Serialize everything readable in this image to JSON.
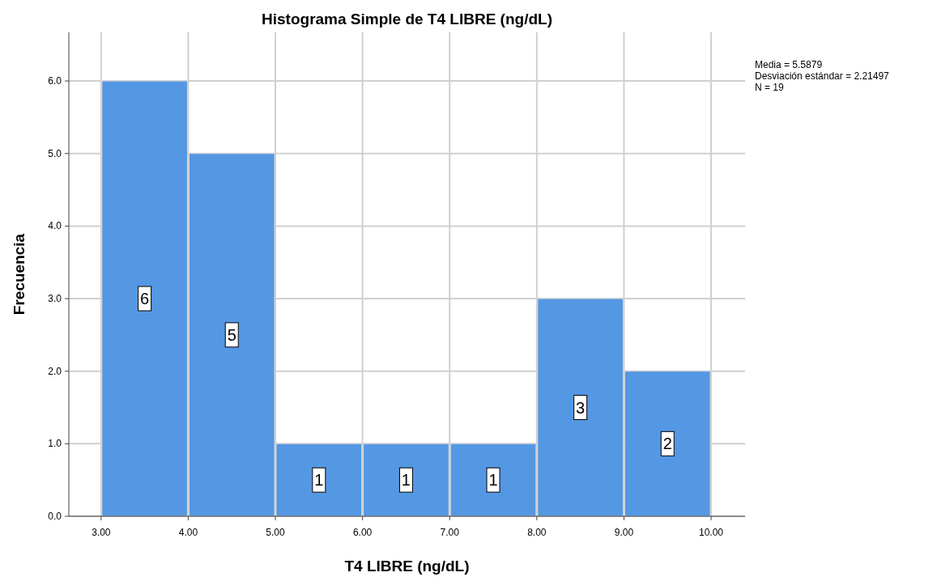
{
  "chart_data": {
    "type": "histogram",
    "title": "Histograma Simple de T4 LIBRE (ng/dL)",
    "xlabel": "T4 LIBRE (ng/dL)",
    "ylabel": "Frecuencia",
    "bins": [
      3,
      4,
      5,
      6,
      7,
      8,
      9,
      10
    ],
    "values": [
      6,
      5,
      1,
      1,
      1,
      3,
      2
    ],
    "color": "#5497e3",
    "data_labels": true,
    "xlim": [
      2.63,
      10.39
    ],
    "ylim": [
      0,
      6.67
    ],
    "xticks": [
      {
        "value": 3,
        "label": "3.00"
      },
      {
        "value": 4,
        "label": "4.00"
      },
      {
        "value": 5,
        "label": "5.00"
      },
      {
        "value": 6,
        "label": "6.00"
      },
      {
        "value": 7,
        "label": "7.00"
      },
      {
        "value": 8,
        "label": "8.00"
      },
      {
        "value": 9,
        "label": "9.00"
      },
      {
        "value": 10,
        "label": "10.00"
      }
    ],
    "yticks": [
      {
        "value": 0,
        "label": "0.0"
      },
      {
        "value": 1,
        "label": "1.0"
      },
      {
        "value": 2,
        "label": "2.0"
      },
      {
        "value": 3,
        "label": "3.0"
      },
      {
        "value": 4,
        "label": "4.0"
      },
      {
        "value": 5,
        "label": "5.0"
      },
      {
        "value": 6,
        "label": "6.0"
      }
    ],
    "grid": true,
    "annotations": [
      "Media = 5.5879",
      "Desviación estándar = 2.21497",
      "N = 19"
    ]
  }
}
